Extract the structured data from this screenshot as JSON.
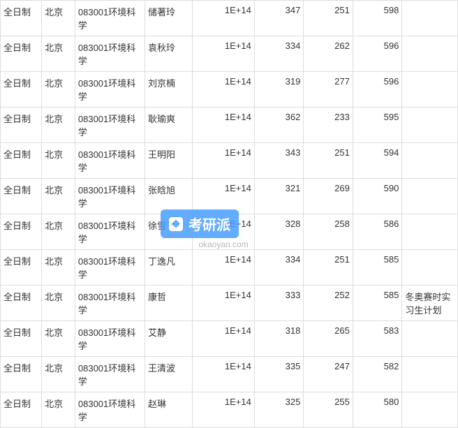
{
  "watermark": {
    "text": "考研派",
    "url": "okaoyan.com"
  },
  "table": {
    "columns": [
      "type",
      "location",
      "major",
      "name",
      "number",
      "score1",
      "score2",
      "total",
      "note"
    ],
    "rows": [
      {
        "type": "全日制",
        "location": "北京",
        "major": "083001环境科学",
        "name": "储著玲",
        "number": "1E+14",
        "score1": "347",
        "score2": "251",
        "total": "598",
        "note": ""
      },
      {
        "type": "全日制",
        "location": "北京",
        "major": "083001环境科学",
        "name": "袁秋玲",
        "number": "1E+14",
        "score1": "334",
        "score2": "262",
        "total": "596",
        "note": ""
      },
      {
        "type": "全日制",
        "location": "北京",
        "major": "083001环境科学",
        "name": "刘京楠",
        "number": "1E+14",
        "score1": "319",
        "score2": "277",
        "total": "596",
        "note": ""
      },
      {
        "type": "全日制",
        "location": "北京",
        "major": "083001环境科学",
        "name": "耿瑜爽",
        "number": "1E+14",
        "score1": "362",
        "score2": "233",
        "total": "595",
        "note": ""
      },
      {
        "type": "全日制",
        "location": "北京",
        "major": "083001环境科学",
        "name": "王明阳",
        "number": "1E+14",
        "score1": "343",
        "score2": "251",
        "total": "594",
        "note": ""
      },
      {
        "type": "全日制",
        "location": "北京",
        "major": "083001环境科学",
        "name": "张晗旭",
        "number": "1E+14",
        "score1": "321",
        "score2": "269",
        "total": "590",
        "note": ""
      },
      {
        "type": "全日制",
        "location": "北京",
        "major": "083001环境科学",
        "name": "徐雪飞",
        "number": "1E+14",
        "score1": "328",
        "score2": "258",
        "total": "586",
        "note": ""
      },
      {
        "type": "全日制",
        "location": "北京",
        "major": "083001环境科学",
        "name": "丁逸凡",
        "number": "1E+14",
        "score1": "334",
        "score2": "251",
        "total": "585",
        "note": ""
      },
      {
        "type": "全日制",
        "location": "北京",
        "major": "083001环境科学",
        "name": "康哲",
        "number": "1E+14",
        "score1": "333",
        "score2": "252",
        "total": "585",
        "note": "冬奥赛时实习生计划"
      },
      {
        "type": "全日制",
        "location": "北京",
        "major": "083001环境科学",
        "name": "艾静",
        "number": "1E+14",
        "score1": "318",
        "score2": "265",
        "total": "583",
        "note": ""
      },
      {
        "type": "全日制",
        "location": "北京",
        "major": "083001环境科学",
        "name": "王清波",
        "number": "1E+14",
        "score1": "335",
        "score2": "247",
        "total": "582",
        "note": ""
      },
      {
        "type": "全日制",
        "location": "北京",
        "major": "083001环境科学",
        "name": "赵琳",
        "number": "1E+14",
        "score1": "325",
        "score2": "255",
        "total": "580",
        "note": ""
      }
    ]
  }
}
